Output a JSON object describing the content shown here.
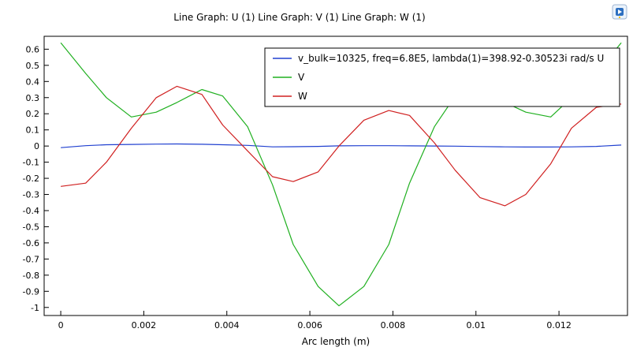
{
  "window": {
    "title": "Line Graph: U (1)  Line Graph: V (1)  Line Graph: W (1)",
    "icon": "comsol-logo-icon"
  },
  "chart_data": {
    "type": "line",
    "title": "Line Graph: U (1)  Line Graph: V (1)  Line Graph: W (1)",
    "xlabel": "Arc length (m)",
    "ylabel": "",
    "xlim": [
      -0.0004,
      0.01365
    ],
    "ylim": [
      -1.05,
      0.68
    ],
    "xticks": [
      0,
      0.002,
      0.004,
      0.006,
      0.008,
      0.01,
      0.012
    ],
    "xtick_labels": [
      "0",
      "0.002",
      "0.004",
      "0.006",
      "0.008",
      "0.01",
      "0.012"
    ],
    "yticks": [
      0.6,
      0.5,
      0.4,
      0.3,
      0.2,
      0.1,
      0,
      -0.1,
      -0.2,
      -0.3,
      -0.4,
      -0.5,
      -0.6,
      -0.7,
      -0.8,
      -0.9,
      -1
    ],
    "ytick_labels": [
      "0.6",
      "0.5",
      "0.4",
      "0.3",
      "0.2",
      "0.1",
      "0",
      "-0.1",
      "-0.2",
      "-0.3",
      "-0.4",
      "-0.5",
      "-0.6",
      "-0.7",
      "-0.8",
      "-0.9",
      "-1"
    ],
    "grid": false,
    "legend_position": "top-right",
    "series": [
      {
        "name": "v_bulk=10325, freq=6.8E5, lambda(1)=398.92-0.30523i rad/s U",
        "color": "#2040d0",
        "x": [
          0,
          0.0006,
          0.0011,
          0.0017,
          0.0023,
          0.0028,
          0.0034,
          0.0039,
          0.0045,
          0.0051,
          0.0056,
          0.0062,
          0.0067,
          0.0073,
          0.0079,
          0.0084,
          0.009,
          0.0095,
          0.0101,
          0.0107,
          0.0112,
          0.0118,
          0.0123,
          0.0129,
          0.0135
        ],
        "y": [
          -0.01,
          0.002,
          0.008,
          0.01,
          0.012,
          0.013,
          0.011,
          0.008,
          0.004,
          -0.005,
          -0.004,
          -0.002,
          0.001,
          0.002,
          0.002,
          0.001,
          0,
          -0.001,
          -0.003,
          -0.005,
          -0.006,
          -0.006,
          -0.005,
          -0.002,
          0.006
        ]
      },
      {
        "name": "V",
        "color": "#20b020",
        "x": [
          0,
          0.0006,
          0.0011,
          0.0017,
          0.0023,
          0.0028,
          0.0034,
          0.0039,
          0.0045,
          0.0051,
          0.0056,
          0.0062,
          0.0067,
          0.0073,
          0.0079,
          0.0084,
          0.009,
          0.0095,
          0.0101,
          0.0107,
          0.0112,
          0.0118,
          0.0123,
          0.0129,
          0.0135
        ],
        "y": [
          0.64,
          0.45,
          0.3,
          0.18,
          0.21,
          0.27,
          0.35,
          0.31,
          0.12,
          -0.24,
          -0.61,
          -0.87,
          -0.99,
          -0.87,
          -0.61,
          -0.23,
          0.12,
          0.31,
          0.35,
          0.27,
          0.21,
          0.18,
          0.3,
          0.45,
          0.64
        ]
      },
      {
        "name": "W",
        "color": "#d02020",
        "x": [
          0,
          0.0006,
          0.0011,
          0.0017,
          0.0023,
          0.0028,
          0.0034,
          0.0039,
          0.0045,
          0.0051,
          0.0056,
          0.0062,
          0.0067,
          0.0073,
          0.0079,
          0.0084,
          0.009,
          0.0095,
          0.0101,
          0.0107,
          0.0112,
          0.0118,
          0.0123,
          0.0129,
          0.0135
        ],
        "y": [
          -0.25,
          -0.23,
          -0.1,
          0.11,
          0.3,
          0.37,
          0.32,
          0.13,
          -0.03,
          -0.19,
          -0.22,
          -0.16,
          0,
          0.16,
          0.22,
          0.19,
          0.02,
          -0.15,
          -0.32,
          -0.37,
          -0.3,
          -0.11,
          0.11,
          0.24,
          0.26
        ]
      }
    ]
  }
}
